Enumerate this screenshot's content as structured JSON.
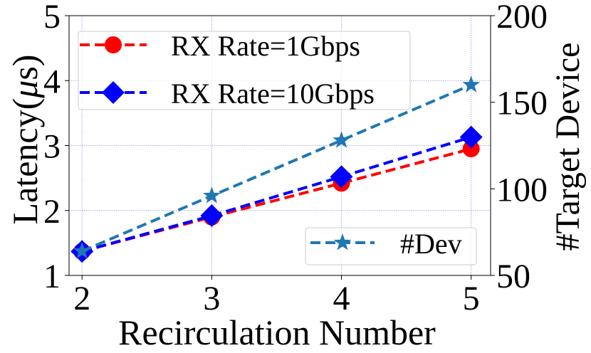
{
  "chart_data": {
    "type": "line",
    "xlabel": "Recirculation Number",
    "ylabel": "Latency(μs)",
    "ylabel_parts": {
      "prefix": "Latency(",
      "mu": "μ",
      "suffix": "s)"
    },
    "y2label": "#Target Device",
    "x": [
      2,
      3,
      4,
      5
    ],
    "xticks": [
      2,
      3,
      4,
      5
    ],
    "xlim": [
      1.9,
      5.15
    ],
    "ylim": [
      1,
      5
    ],
    "yticks": [
      1,
      2,
      3,
      4,
      5
    ],
    "y2lim": [
      50,
      200
    ],
    "y2ticks": [
      50,
      100,
      150,
      200
    ],
    "grid": true,
    "series": [
      {
        "name": "RX Rate=1Gbps",
        "axis": "left",
        "color": "#ff0000",
        "marker": "circle",
        "values": [
          1.37,
          1.9,
          2.42,
          2.95
        ]
      },
      {
        "name": "RX Rate=10Gbps",
        "axis": "left",
        "color": "#0000ff",
        "marker": "diamond",
        "values": [
          1.37,
          1.92,
          2.52,
          3.13
        ]
      },
      {
        "name": "#Dev",
        "axis": "right",
        "color": "#1f77b4",
        "marker": "star",
        "values": [
          64,
          96,
          128,
          160
        ]
      }
    ],
    "legend_left": {
      "position": "upper-left",
      "entries": [
        "RX Rate=1Gbps",
        "RX Rate=10Gbps"
      ]
    },
    "legend_right": {
      "position": "lower-right",
      "entries": [
        "#Dev"
      ]
    }
  }
}
